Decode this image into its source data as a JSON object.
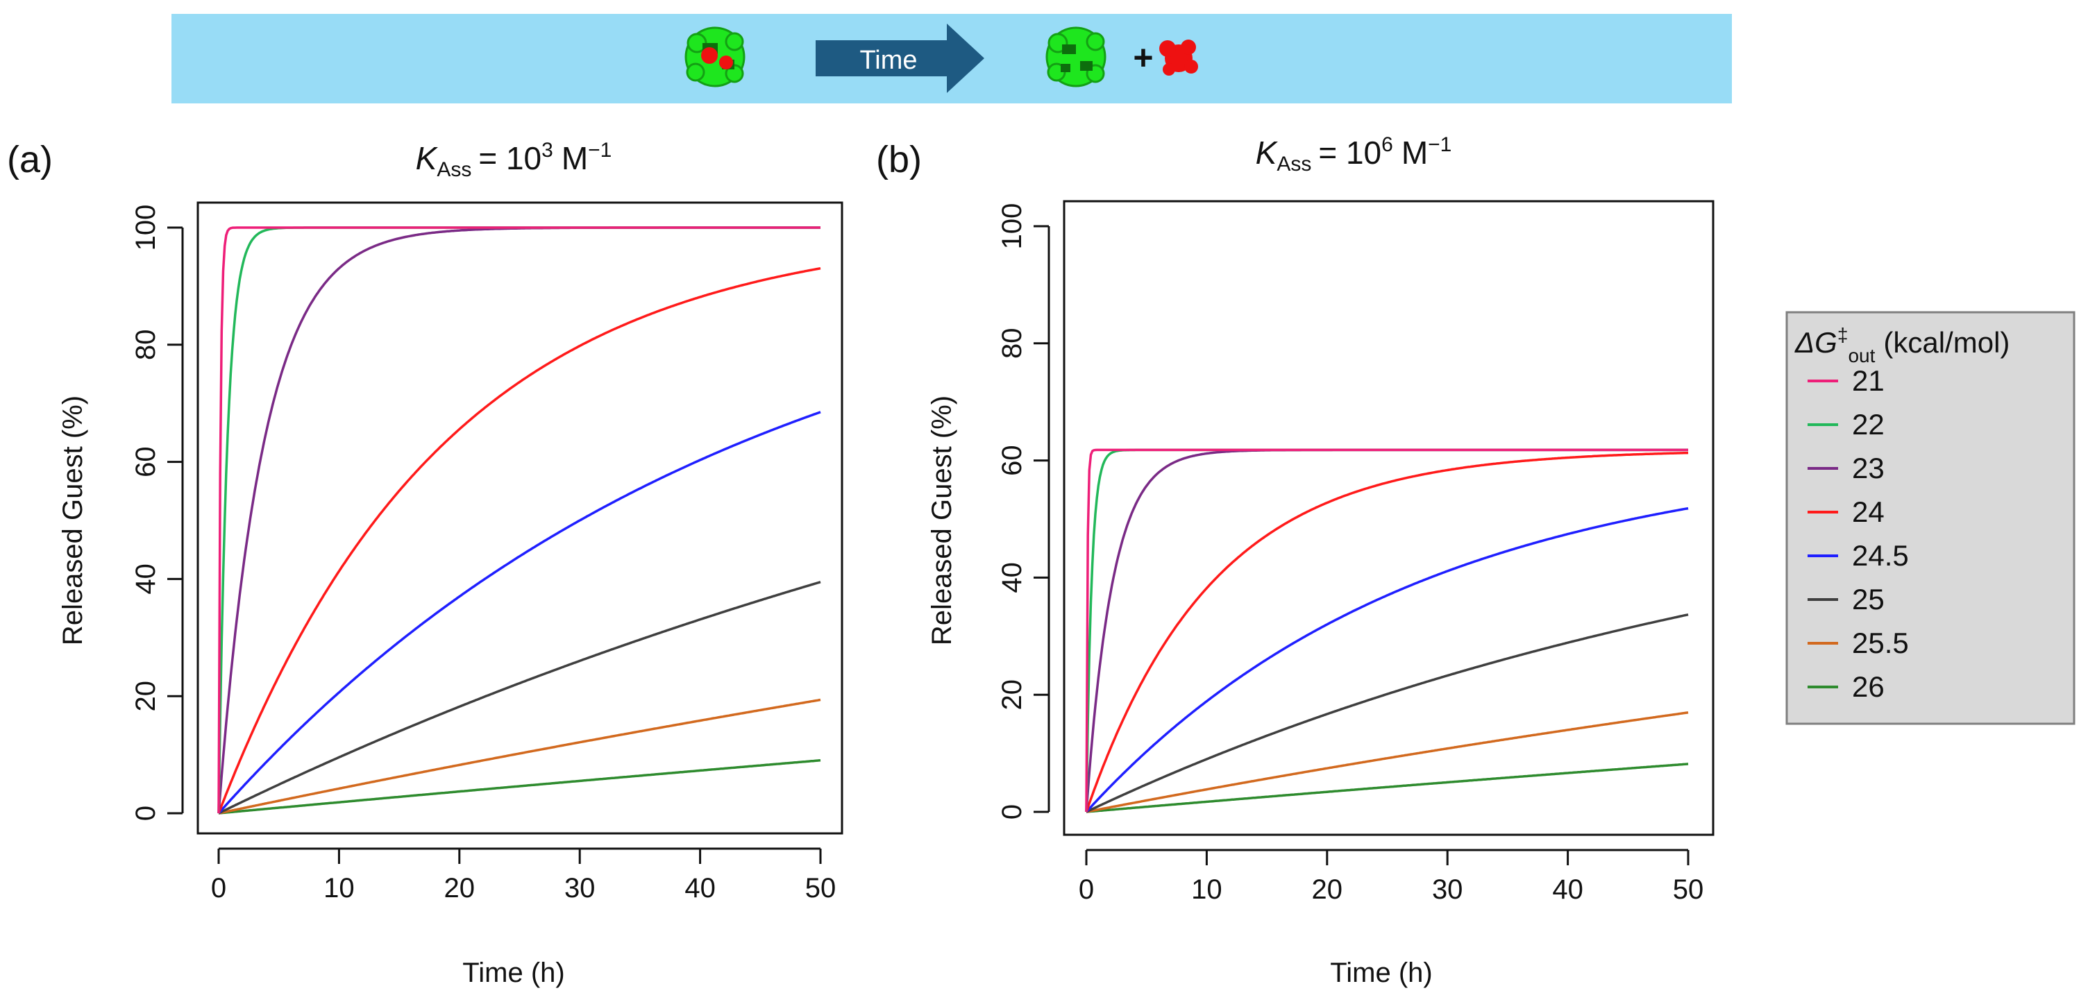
{
  "banner": {
    "arrow_label": "Time",
    "plus_sign": "+",
    "colors": {
      "band": "#98dcf6",
      "arrow": "#1e5a82",
      "cage": "#1ee61e",
      "guest": "#ee1111"
    }
  },
  "legend": {
    "title_prefix": "ΔG",
    "title_sup": "‡",
    "title_sub": "out",
    "title_unit": "(kcal/mol)",
    "entries": [
      "21",
      "22",
      "23",
      "24",
      "24.5",
      "25",
      "25.5",
      "26"
    ]
  },
  "chart_data": [
    {
      "type": "line",
      "panel_label": "(a)",
      "title_symbol": "K",
      "title_sub": "Ass",
      "title_rest": "= 10",
      "title_sup": "3",
      "title_unit": "M",
      "title_unit_sup": "−1",
      "xlabel": "Time (h)",
      "ylabel": "Released Guest (%)",
      "xlim": [
        0,
        50
      ],
      "ylim": [
        0,
        100
      ],
      "xticks": [
        "0",
        "10",
        "20",
        "30",
        "40",
        "50"
      ],
      "yticks": [
        "0",
        "20",
        "40",
        "60",
        "80",
        "100"
      ],
      "grid": false,
      "plateau": 100,
      "series": [
        {
          "name": "21",
          "color": "#ee1e78",
          "half_life_h": 0.1
        },
        {
          "name": "22",
          "color": "#22b85a",
          "half_life_h": 0.5
        },
        {
          "name": "23",
          "color": "#7a2a86",
          "half_life_h": 2.6
        },
        {
          "name": "24",
          "color": "#ff1a1a",
          "half_life_h": 13
        },
        {
          "name": "24.5",
          "color": "#1f1fff",
          "half_life_h": 30
        },
        {
          "name": "25",
          "color": "#3f3f3f",
          "half_life_h": 69
        },
        {
          "name": "25.5",
          "color": "#d2691e",
          "half_life_h": 161
        },
        {
          "name": "26",
          "color": "#2e8b2e",
          "half_life_h": 366
        }
      ]
    },
    {
      "type": "line",
      "panel_label": "(b)",
      "title_symbol": "K",
      "title_sub": "Ass",
      "title_rest": "= 10",
      "title_sup": "6",
      "title_unit": "M",
      "title_unit_sup": "−1",
      "xlabel": "Time (h)",
      "ylabel": "Released Guest (%)",
      "xlim": [
        0,
        50
      ],
      "ylim": [
        0,
        100
      ],
      "xticks": [
        "0",
        "10",
        "20",
        "30",
        "40",
        "50"
      ],
      "yticks": [
        "0",
        "20",
        "40",
        "60",
        "80",
        "100"
      ],
      "grid": false,
      "plateau": 61.8,
      "series": [
        {
          "name": "21",
          "color": "#ee1e78",
          "half_life_h": 0.06
        },
        {
          "name": "22",
          "color": "#22b85a",
          "half_life_h": 0.3
        },
        {
          "name": "23",
          "color": "#7a2a86",
          "half_life_h": 1.5
        },
        {
          "name": "24",
          "color": "#ff1a1a",
          "half_life_h": 7.2
        },
        {
          "name": "24.5",
          "color": "#1f1fff",
          "half_life_h": 19
        },
        {
          "name": "25",
          "color": "#3f3f3f",
          "half_life_h": 44
        },
        {
          "name": "25.5",
          "color": "#d2691e",
          "half_life_h": 108
        },
        {
          "name": "26",
          "color": "#2e8b2e",
          "half_life_h": 244
        }
      ]
    }
  ]
}
